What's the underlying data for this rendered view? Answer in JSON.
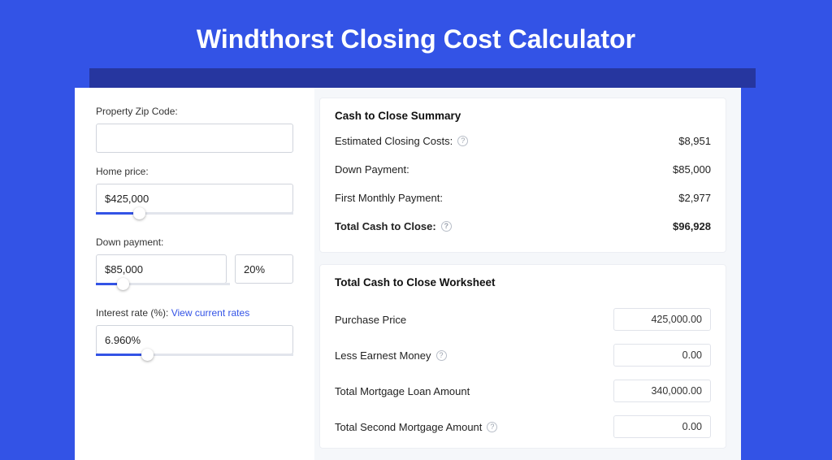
{
  "page": {
    "title": "Windthorst Closing Cost Calculator",
    "background": "#3353e6",
    "shadow": "#26369f"
  },
  "inputs": {
    "zip_label": "Property Zip Code:",
    "zip_value": "",
    "home_price_label": "Home price:",
    "home_price_value": "$425,000",
    "home_price_slider_pct": 22,
    "down_payment_label": "Down payment:",
    "down_payment_value": "$85,000",
    "down_payment_pct": "20%",
    "down_payment_slider_pct": 20,
    "interest_label": "Interest rate (%): ",
    "interest_link": "View current rates",
    "interest_value": "6.960%",
    "interest_slider_pct": 26
  },
  "summary": {
    "title": "Cash to Close Summary",
    "rows": [
      {
        "label": "Estimated Closing Costs:",
        "help": true,
        "value": "$8,951",
        "bold": false
      },
      {
        "label": "Down Payment:",
        "help": false,
        "value": "$85,000",
        "bold": false
      },
      {
        "label": "First Monthly Payment:",
        "help": false,
        "value": "$2,977",
        "bold": false
      },
      {
        "label": "Total Cash to Close:",
        "help": true,
        "value": "$96,928",
        "bold": true
      }
    ]
  },
  "worksheet": {
    "title": "Total Cash to Close Worksheet",
    "rows": [
      {
        "label": "Purchase Price",
        "help": false,
        "value": "425,000.00"
      },
      {
        "label": "Less Earnest Money",
        "help": true,
        "value": "0.00"
      },
      {
        "label": "Total Mortgage Loan Amount",
        "help": false,
        "value": "340,000.00"
      },
      {
        "label": "Total Second Mortgage Amount",
        "help": true,
        "value": "0.00"
      }
    ]
  }
}
